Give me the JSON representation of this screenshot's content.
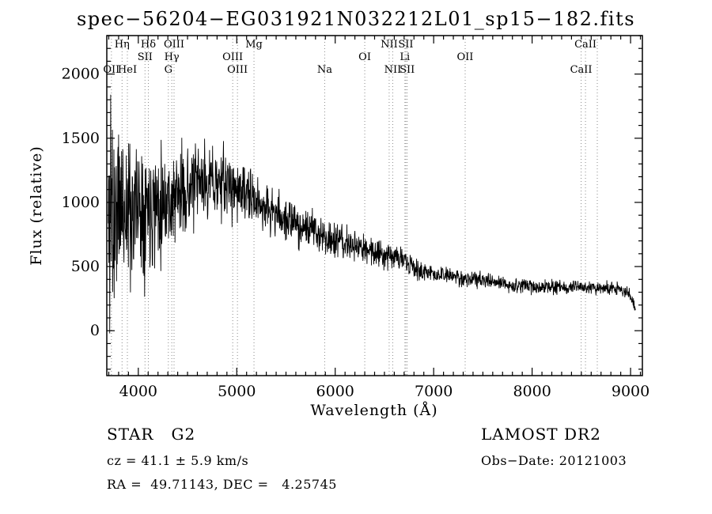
{
  "title": "spec−56204−EG031921N032212L01_sp15−182.fits",
  "chart_data": {
    "type": "line",
    "title": "spec−56204−EG031921N032212L01_sp15−182.fits",
    "xlabel": "Wavelength (Å)",
    "ylabel": "Flux (relative)",
    "xlim": [
      3680,
      9120
    ],
    "ylim": [
      -350,
      2300
    ],
    "x_ticks": [
      4000,
      5000,
      6000,
      7000,
      8000,
      9000
    ],
    "y_ticks": [
      0,
      500,
      1000,
      1500,
      2000
    ],
    "x_minor_step": 100,
    "y_minor_step": 100,
    "grid": false,
    "legend": "none",
    "line_color": "#000000",
    "spectral_line_color": "#8a8a8a",
    "spectral_lines": [
      {
        "label": "Hη",
        "wavelength": 3835,
        "row": 1
      },
      {
        "label": "Hδ",
        "wavelength": 4102,
        "row": 1
      },
      {
        "label": "OIII",
        "wavelength": 4363,
        "row": 1
      },
      {
        "label": "Mg",
        "wavelength": 5175,
        "row": 1
      },
      {
        "label": "NII",
        "wavelength": 6548,
        "row": 1
      },
      {
        "label": "SII",
        "wavelength": 6717,
        "row": 1
      },
      {
        "label": "CaII",
        "wavelength": 8542,
        "row": 1
      },
      {
        "label": "SII",
        "wavelength": 4068,
        "row": 2
      },
      {
        "label": "Hγ",
        "wavelength": 4340,
        "row": 2
      },
      {
        "label": "OIII",
        "wavelength": 4959,
        "row": 2
      },
      {
        "label": "OI",
        "wavelength": 6300,
        "row": 2
      },
      {
        "label": "Li",
        "wavelength": 6708,
        "row": 2
      },
      {
        "label": "OII",
        "wavelength": 7320,
        "row": 2
      },
      {
        "label": "OII",
        "wavelength": 3727,
        "row": 3
      },
      {
        "label": "HeI",
        "wavelength": 3889,
        "row": 3
      },
      {
        "label": "G",
        "wavelength": 4305,
        "row": 3
      },
      {
        "label": "OIII",
        "wavelength": 5007,
        "row": 3
      },
      {
        "label": "Na",
        "wavelength": 5893,
        "row": 3
      },
      {
        "label": "NII",
        "wavelength": 6584,
        "row": 3
      },
      {
        "label": "SII",
        "wavelength": 6731,
        "row": 3
      },
      {
        "label": "CaII",
        "wavelength": 8498,
        "row": 3
      },
      {
        "label": "",
        "wavelength": 8662,
        "row": 3
      }
    ],
    "series": [
      {
        "name": "spectrum",
        "note": "noisy stellar spectrum; envelope points are [wavelength, mean_flux, noise_amplitude]",
        "envelope": [
          [
            3695,
            700,
            650
          ],
          [
            3720,
            1150,
            900
          ],
          [
            3745,
            850,
            750
          ],
          [
            3790,
            950,
            520
          ],
          [
            3840,
            1000,
            460
          ],
          [
            3890,
            920,
            430
          ],
          [
            3940,
            960,
            400
          ],
          [
            4000,
            1000,
            360
          ],
          [
            4060,
            980,
            360
          ],
          [
            4120,
            1040,
            380
          ],
          [
            4180,
            1000,
            330
          ],
          [
            4260,
            1030,
            300
          ],
          [
            4350,
            1020,
            270
          ],
          [
            4450,
            1080,
            230
          ],
          [
            4550,
            1120,
            210
          ],
          [
            4650,
            1150,
            200
          ],
          [
            4750,
            1160,
            195
          ],
          [
            4850,
            1150,
            185
          ],
          [
            4950,
            1120,
            175
          ],
          [
            5050,
            1080,
            160
          ],
          [
            5150,
            1020,
            150
          ],
          [
            5250,
            980,
            140
          ],
          [
            5350,
            930,
            130
          ],
          [
            5450,
            890,
            120
          ],
          [
            5550,
            850,
            115
          ],
          [
            5650,
            815,
            108
          ],
          [
            5750,
            790,
            105
          ],
          [
            5850,
            750,
            100
          ],
          [
            5950,
            715,
            95
          ],
          [
            6050,
            690,
            90
          ],
          [
            6150,
            665,
            88
          ],
          [
            6250,
            645,
            85
          ],
          [
            6350,
            625,
            82
          ],
          [
            6450,
            610,
            80
          ],
          [
            6550,
            595,
            78
          ],
          [
            6650,
            570,
            72
          ],
          [
            6700,
            545,
            68
          ],
          [
            6750,
            505,
            62
          ],
          [
            6850,
            470,
            55
          ],
          [
            6950,
            450,
            52
          ],
          [
            7050,
            435,
            50
          ],
          [
            7150,
            425,
            48
          ],
          [
            7250,
            415,
            47
          ],
          [
            7350,
            405,
            46
          ],
          [
            7450,
            395,
            44
          ],
          [
            7550,
            385,
            43
          ],
          [
            7700,
            365,
            41
          ],
          [
            7850,
            350,
            40
          ],
          [
            8000,
            345,
            39
          ],
          [
            8150,
            340,
            38
          ],
          [
            8300,
            338,
            38
          ],
          [
            8450,
            335,
            38
          ],
          [
            8600,
            332,
            38
          ],
          [
            8750,
            330,
            38
          ],
          [
            8900,
            320,
            36
          ],
          [
            8980,
            300,
            32
          ],
          [
            9020,
            230,
            28
          ],
          [
            9050,
            160,
            22
          ]
        ]
      }
    ],
    "sample_step": 3,
    "seed": 11,
    "noise_scale": 1.4
  },
  "footer": {
    "class_label": "STAR   G2",
    "survey": "LAMOST DR2",
    "cz": "cz = 41.1 ± 5.9 km/s",
    "obs_date": "Obs−Date: 20121003",
    "radec": "RA =  49.71143, DEC =   4.25745"
  }
}
